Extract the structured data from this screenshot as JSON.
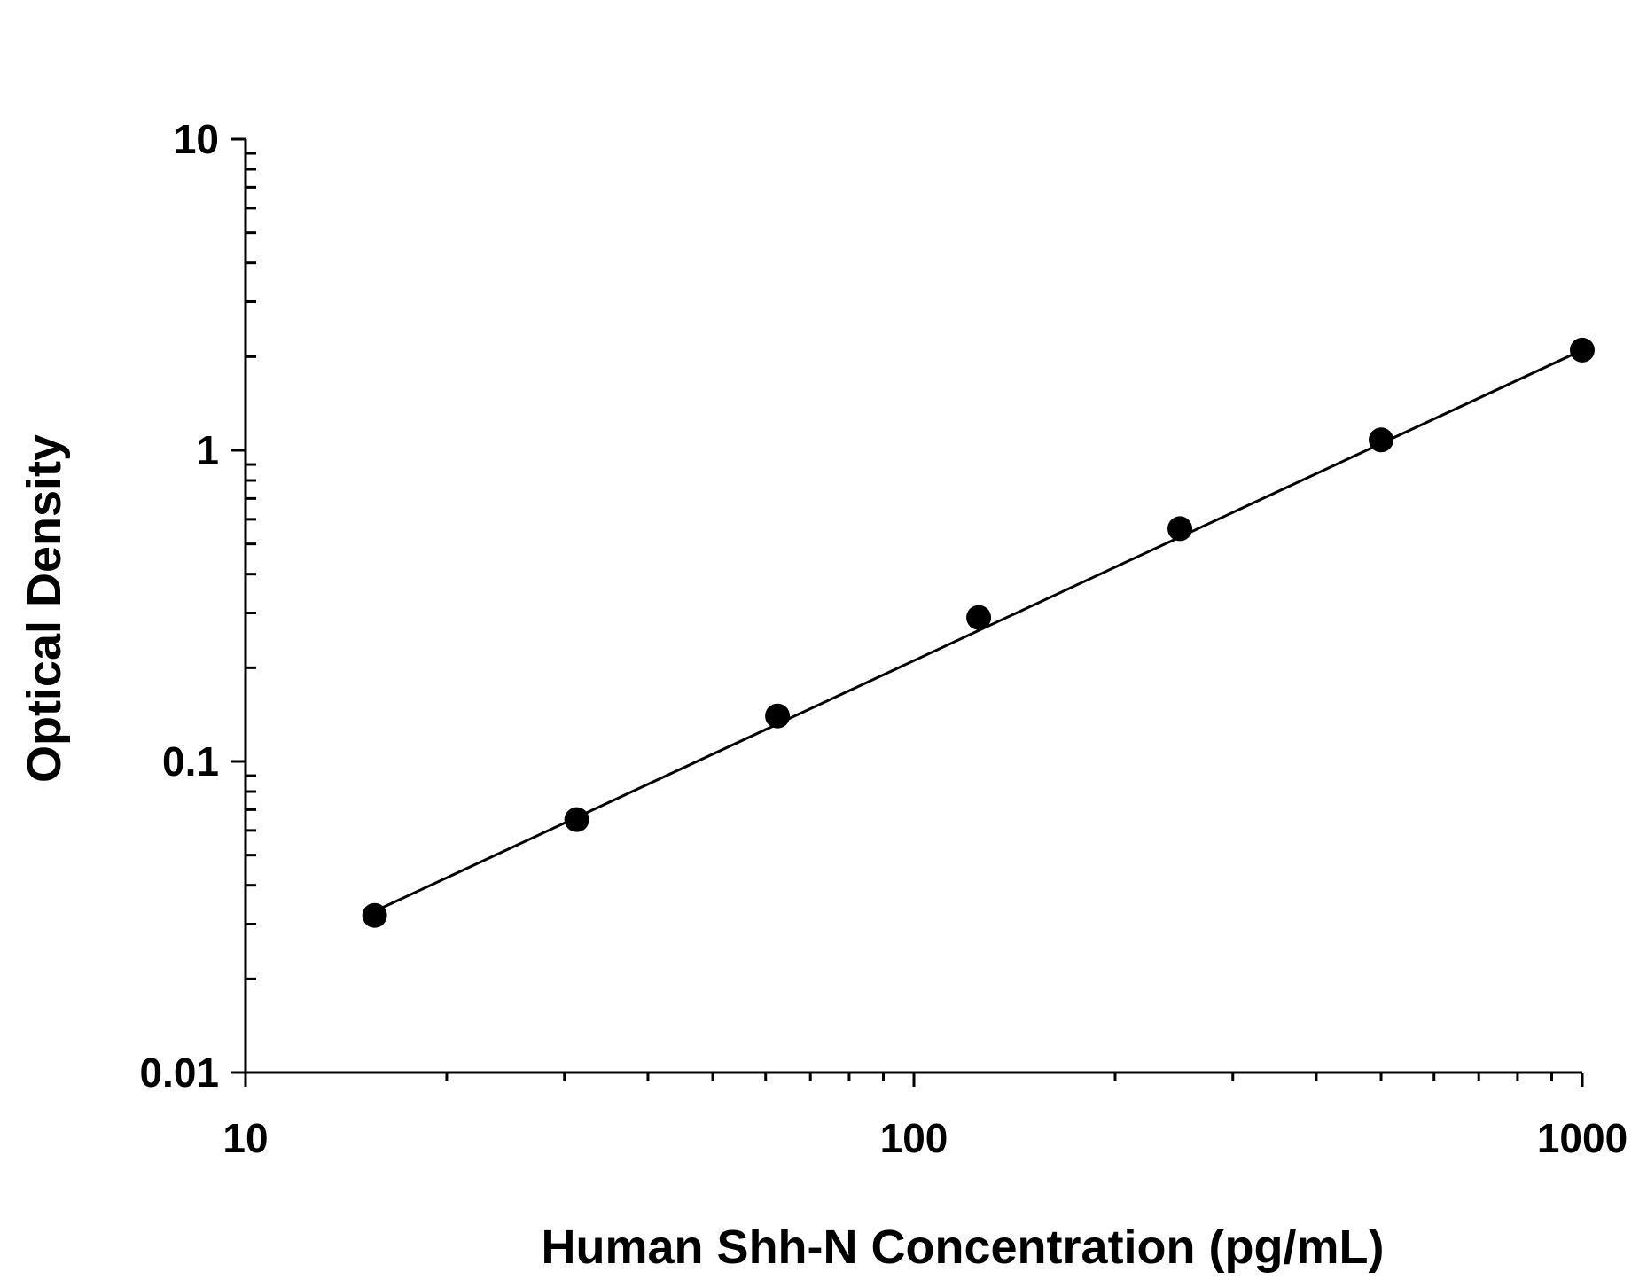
{
  "chart_data": {
    "type": "scatter",
    "title": "",
    "xlabel": "Human Shh-N Concentration (pg/mL)",
    "ylabel": "Optical Density",
    "xscale": "log",
    "yscale": "log",
    "xlim": [
      10,
      1000
    ],
    "ylim": [
      0.01,
      10
    ],
    "xticks": [
      "10",
      "100",
      "1000"
    ],
    "yticks": [
      "0.01",
      "0.1",
      "1",
      "10"
    ],
    "grid": false,
    "legend": "none",
    "colors": {
      "points": "#000000",
      "line": "#000000",
      "axes": "#000000"
    },
    "series": [
      {
        "x": [
          15.6,
          31.3,
          62.5,
          125,
          250,
          500,
          1000
        ],
        "y": [
          0.032,
          0.065,
          0.14,
          0.29,
          0.56,
          1.08,
          2.1
        ]
      }
    ],
    "fit_line": {
      "type": "log-log linear",
      "x": [
        15.6,
        1000
      ],
      "y": [
        0.033,
        2.1
      ]
    }
  }
}
